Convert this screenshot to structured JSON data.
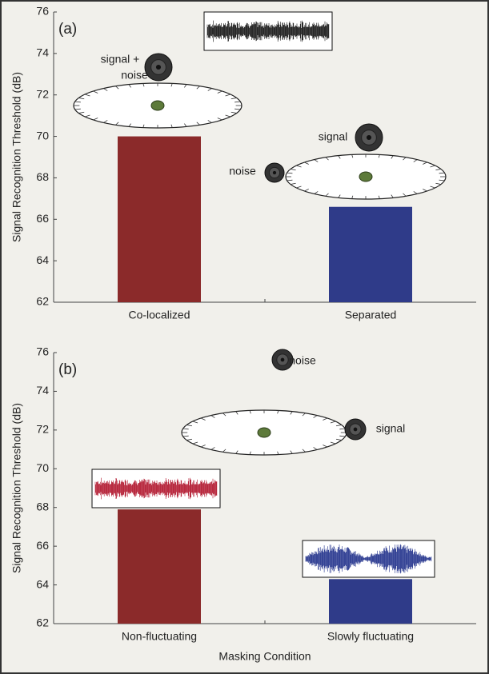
{
  "chart_data": [
    {
      "type": "bar",
      "panel_label": "(a)",
      "ylabel": "Signal Recognition Threshold (dB)",
      "categories": [
        "Co-localized",
        "Separated"
      ],
      "values": [
        70,
        66.6
      ],
      "colors": [
        "#8b2a2a",
        "#2f3b89"
      ],
      "ylim": [
        62,
        76
      ],
      "yticks": [
        62,
        64,
        66,
        68,
        70,
        72,
        74,
        76
      ],
      "annotations": [
        "signal +",
        "noise",
        "signal",
        "noise"
      ]
    },
    {
      "type": "bar",
      "panel_label": "(b)",
      "ylabel": "Signal Recognition Threshold (dB)",
      "xlabel": "Masking Condition",
      "categories": [
        "Non-fluctuating",
        "Slowly fluctuating"
      ],
      "values": [
        67.9,
        64.3
      ],
      "colors": [
        "#8b2a2a",
        "#2f3b89"
      ],
      "ylim": [
        62,
        76
      ],
      "yticks": [
        62,
        64,
        66,
        68,
        70,
        72,
        74,
        76
      ],
      "annotations": [
        "noise",
        "signal"
      ]
    }
  ]
}
